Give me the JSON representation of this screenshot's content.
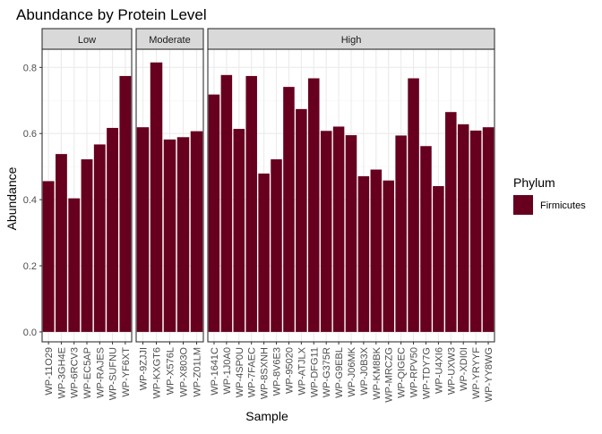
{
  "chart_data": {
    "type": "bar",
    "title": "Abundance by Protein Level",
    "xlabel": "Sample",
    "ylabel": "Abundance",
    "ylim": [
      -0.03,
      0.855
    ],
    "yticks": [
      0.0,
      0.2,
      0.4,
      0.6,
      0.8
    ],
    "ytick_labels": [
      "0.0",
      "0.2",
      "0.4",
      "0.6",
      "0.8"
    ],
    "grid": true,
    "legend": {
      "title": "Phylum",
      "position": "right",
      "entries": [
        {
          "label": "Firmicutes",
          "color": "#67001F"
        }
      ]
    },
    "panels": [
      {
        "label": "Low",
        "categories": [
          "WP-11O29",
          "WP-3GH4E",
          "WP-6RCV3",
          "WP-EC5AP",
          "WP-RAJES",
          "WP-SUFNU",
          "WP-YF6XT"
        ],
        "values": [
          0.456,
          0.538,
          0.404,
          0.522,
          0.567,
          0.617,
          0.774
        ]
      },
      {
        "label": "Moderate",
        "categories": [
          "WP-9ZJJI",
          "WP-KXGT6",
          "WP-X576L",
          "WP-X803O",
          "WP-Z01LM"
        ],
        "values": [
          0.619,
          0.815,
          0.582,
          0.589,
          0.607
        ]
      },
      {
        "label": "High",
        "categories": [
          "WP-1641C",
          "WP-1J0A0",
          "WP-4SP0U",
          "WP-7FAEC",
          "WP-8SXNH",
          "WP-8V6E3",
          "WP-95020",
          "WP-ATJLX",
          "WP-DFG11",
          "WP-G375R",
          "WP-G9EBL",
          "WP-J06MK",
          "WP-J0B3X",
          "WP-KM8BK",
          "WP-MRCZG",
          "WP-QIGEC",
          "WP-RPV50",
          "WP-TDY7G",
          "WP-U4XI6",
          "WP-UXW3",
          "WP-XDI0I",
          "WP-YRYYF",
          "WP-YY8WG"
        ],
        "values": [
          0.718,
          0.777,
          0.614,
          0.774,
          0.479,
          0.522,
          0.741,
          0.674,
          0.767,
          0.608,
          0.621,
          0.595,
          0.471,
          0.491,
          0.458,
          0.594,
          0.767,
          0.562,
          0.441,
          0.665,
          0.628,
          0.609,
          0.619
        ]
      }
    ],
    "colors": {
      "bar": "#67001F",
      "strip_fill": "#D9D9D9",
      "strip_border": "#333333",
      "grid_major": "#EBEBEB",
      "grid_minor": "#F5F5F5",
      "axis_text": "#4D4D4D"
    }
  }
}
